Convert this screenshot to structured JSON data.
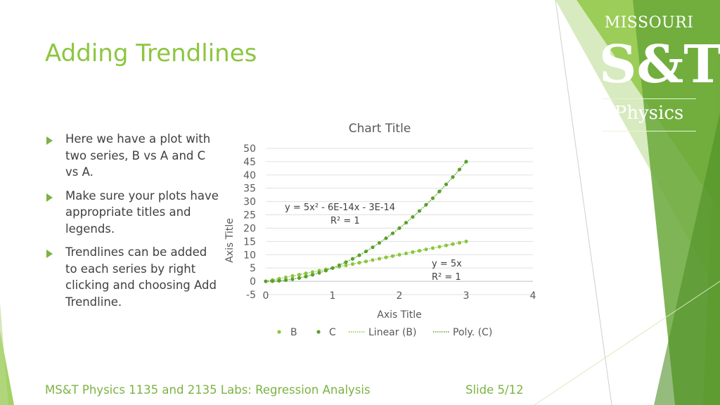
{
  "slide": {
    "title": "Adding Trendlines",
    "bullets": [
      "Here we have a plot with two series, B vs A and C vs A.",
      "Make sure your plots have appropriate titles and legends.",
      "Trendlines can be added to each series by right clicking and choosing Add Trendline."
    ],
    "footer": "MS&T Physics 1135 and 2135 Labs: Regression Analysis",
    "slide_number": "Slide 5/12"
  },
  "logo": {
    "top_text": "MISSOURI",
    "mark_text": "S&T",
    "bottom_text": "Physics"
  },
  "colors": {
    "title_green": "#8cc63f",
    "series_b": "#8cc63f",
    "series_c": "#5aa02c",
    "deco_green": "#7cb342"
  },
  "chart_data": {
    "type": "scatter",
    "title": "Chart Title",
    "xlabel": "Axis Title",
    "ylabel": "Axis Title",
    "xlim": [
      0,
      4
    ],
    "ylim": [
      -5,
      50
    ],
    "x_ticks": [
      "0",
      "1",
      "2",
      "3",
      "4"
    ],
    "y_ticks": [
      "-5",
      "0",
      "5",
      "10",
      "15",
      "20",
      "25",
      "30",
      "35",
      "40",
      "45",
      "50"
    ],
    "grid": true,
    "legend_position": "bottom",
    "series": [
      {
        "name": "B",
        "x": [
          0,
          0.1,
          0.2,
          0.3,
          0.4,
          0.5,
          0.6,
          0.7,
          0.8,
          0.9,
          1.0,
          1.1,
          1.2,
          1.3,
          1.4,
          1.5,
          1.6,
          1.7,
          1.8,
          1.9,
          2.0,
          2.1,
          2.2,
          2.3,
          2.4,
          2.5,
          2.6,
          2.7,
          2.8,
          2.9,
          3.0
        ],
        "y": [
          0,
          0.5,
          1,
          1.5,
          2,
          2.5,
          3,
          3.5,
          4,
          4.5,
          5,
          5.5,
          6,
          6.5,
          7,
          7.5,
          8,
          8.5,
          9,
          9.5,
          10,
          10.5,
          11,
          11.5,
          12,
          12.5,
          13,
          13.5,
          14,
          14.5,
          15
        ]
      },
      {
        "name": "C",
        "x": [
          0,
          0.1,
          0.2,
          0.3,
          0.4,
          0.5,
          0.6,
          0.7,
          0.8,
          0.9,
          1.0,
          1.1,
          1.2,
          1.3,
          1.4,
          1.5,
          1.6,
          1.7,
          1.8,
          1.9,
          2.0,
          2.1,
          2.2,
          2.3,
          2.4,
          2.5,
          2.6,
          2.7,
          2.8,
          2.9,
          3.0
        ],
        "y": [
          0,
          0.05,
          0.2,
          0.45,
          0.8,
          1.25,
          1.8,
          2.45,
          3.2,
          4.05,
          5,
          6.05,
          7.2,
          8.45,
          9.8,
          11.25,
          12.8,
          14.45,
          16.2,
          18.05,
          20,
          22.05,
          24.2,
          26.45,
          28.8,
          31.25,
          33.8,
          36.45,
          39.2,
          42.05,
          45
        ]
      }
    ],
    "trendlines": [
      {
        "name": "Linear (B)",
        "type": "linear",
        "series": "B",
        "equation": "y = 5x",
        "r2": "R² = 1"
      },
      {
        "name": "Poly. (C)",
        "type": "polynomial",
        "series": "C",
        "equation": "y = 5x² - 6E-14x - 3E-14",
        "r2": "R² = 1"
      }
    ]
  }
}
